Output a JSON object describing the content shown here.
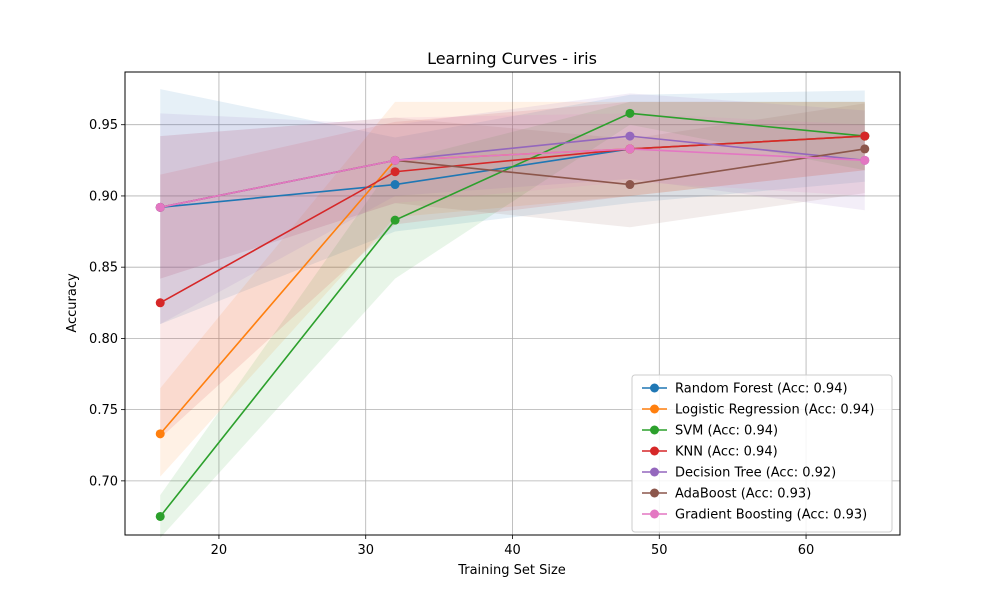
{
  "chart_data": {
    "type": "line",
    "title": "Learning Curves - iris",
    "xlabel": "Training Set Size",
    "ylabel": "Accuracy",
    "x": [
      16,
      32,
      48,
      64
    ],
    "xlim": [
      13.6,
      66.4
    ],
    "ylim": [
      0.662,
      0.987
    ],
    "xticks": [
      20,
      30,
      40,
      50,
      60
    ],
    "yticks": [
      0.7,
      0.75,
      0.8,
      0.85,
      0.9,
      0.95
    ],
    "grid": true,
    "legend_position": "lower-right",
    "series": [
      {
        "name": "Random Forest (Acc: 0.94)",
        "color": "#1f77b4",
        "values": [
          0.892,
          0.908,
          0.933,
          0.942
        ],
        "lower": [
          0.81,
          0.875,
          0.895,
          0.91
        ],
        "upper": [
          0.975,
          0.941,
          0.971,
          0.974
        ]
      },
      {
        "name": "Logistic Regression (Acc: 0.94)",
        "color": "#ff7f0e",
        "values": [
          0.733,
          0.925,
          0.933,
          0.942
        ],
        "lower": [
          0.703,
          0.885,
          0.9,
          0.918
        ],
        "upper": [
          0.765,
          0.966,
          0.966,
          0.966
        ]
      },
      {
        "name": "SVM (Acc: 0.94)",
        "color": "#2ca02c",
        "values": [
          0.675,
          0.883,
          0.958,
          0.942
        ],
        "lower": [
          0.66,
          0.842,
          0.95,
          0.918
        ],
        "upper": [
          0.69,
          0.924,
          0.966,
          0.966
        ]
      },
      {
        "name": "KNN (Acc: 0.94)",
        "color": "#d62728",
        "values": [
          0.825,
          0.917,
          0.933,
          0.942
        ],
        "lower": [
          0.73,
          0.88,
          0.9,
          0.918
        ],
        "upper": [
          0.915,
          0.952,
          0.966,
          0.966
        ]
      },
      {
        "name": "Decision Tree (Acc: 0.92)",
        "color": "#9467bd",
        "values": [
          0.892,
          0.925,
          0.942,
          0.925
        ],
        "lower": [
          0.81,
          0.9,
          0.912,
          0.89
        ],
        "upper": [
          0.958,
          0.95,
          0.972,
          0.96
        ]
      },
      {
        "name": "AdaBoost (Acc: 0.93)",
        "color": "#8c564b",
        "values": [
          0.892,
          0.925,
          0.908,
          0.933
        ],
        "lower": [
          0.842,
          0.895,
          0.878,
          0.902
        ],
        "upper": [
          0.942,
          0.955,
          0.94,
          0.965
        ]
      },
      {
        "name": "Gradient Boosting (Acc: 0.93)",
        "color": "#e377c2",
        "values": [
          0.892,
          0.925,
          0.933,
          0.925
        ],
        "lower": [
          0.842,
          0.895,
          0.91,
          0.9
        ],
        "upper": [
          0.942,
          0.955,
          0.958,
          0.95
        ]
      }
    ]
  }
}
